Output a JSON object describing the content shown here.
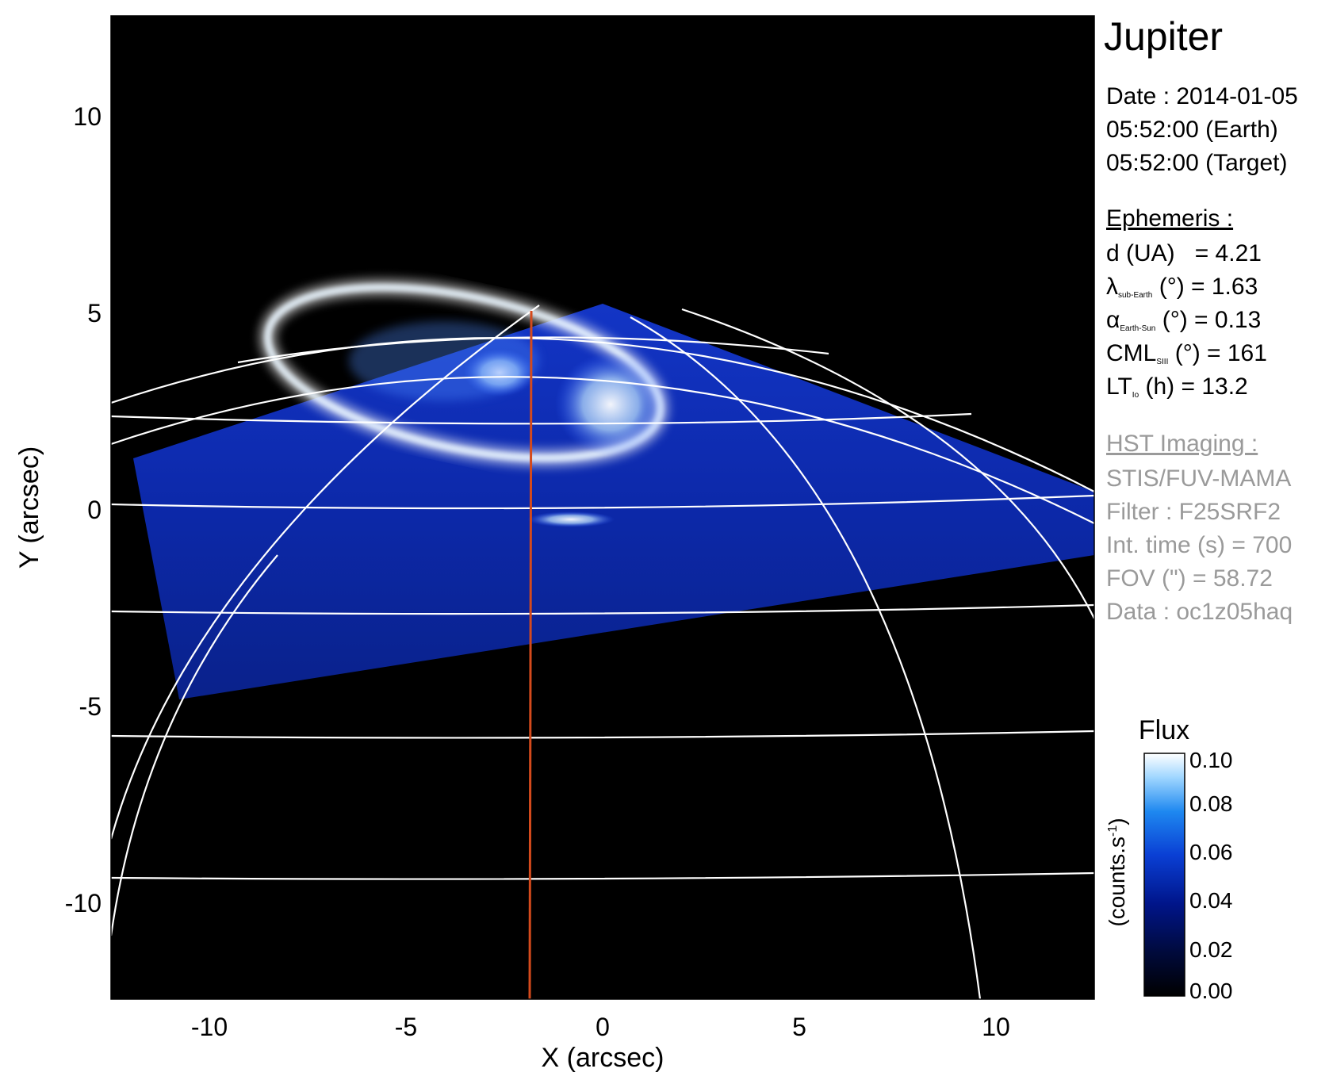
{
  "figure": {
    "title": "Jupiter",
    "date_line": "Date : 2014-01-05",
    "time_earth": "05:52:00 (Earth)",
    "time_target": "05:52:00 (Target)",
    "ephemeris": {
      "heading": "Ephemeris :",
      "d_label": "d (UA)",
      "d_value": "= 4.21",
      "lambda_symbol": "λ",
      "lambda_sub": "sub-Earth",
      "lambda_value": "(°) = 1.63",
      "alpha_symbol": "α",
      "alpha_sub": "Earth-Sun",
      "alpha_value": "(°) = 0.13",
      "cml_label": "CML",
      "cml_sub": "SIII",
      "cml_value": "(°) = 161",
      "lt_label": "LT",
      "lt_sub": "Io",
      "lt_value": "(h) = 13.2"
    },
    "imaging": {
      "heading": "HST Imaging :",
      "instrument": "STIS/FUV-MAMA",
      "filter": "Filter : F25SRF2",
      "int_time": "Int. time (s) = 700",
      "fov": "FOV (\") = 58.72",
      "data": "Data : oc1z05haq"
    },
    "colorbar": {
      "title": "Flux",
      "label": "(counts.s",
      "label_sup": "-1",
      "label_close": ")",
      "ticks": [
        "0.10",
        "0.08",
        "0.06",
        "0.04",
        "0.02",
        "0.00"
      ],
      "colors": [
        "#000000",
        "#000a3c",
        "#00158a",
        "#0a3fd4",
        "#1e88f0",
        "#9fd6ff",
        "#ffffff"
      ]
    },
    "axes": {
      "xlabel": "X (arcsec)",
      "ylabel": "Y (arcsec)",
      "xticks": [
        "-10",
        "-5",
        "0",
        "5",
        "10"
      ],
      "yticks": [
        "10",
        "5",
        "0",
        "-5",
        "-10"
      ],
      "xrange": [
        -12.5,
        12.5
      ],
      "yrange": [
        -12.5,
        12.5
      ]
    },
    "colors": {
      "background": "#000000",
      "grid": "#ffffff",
      "meridian": "#d44a1c",
      "aurora": "#2a5cff"
    }
  }
}
